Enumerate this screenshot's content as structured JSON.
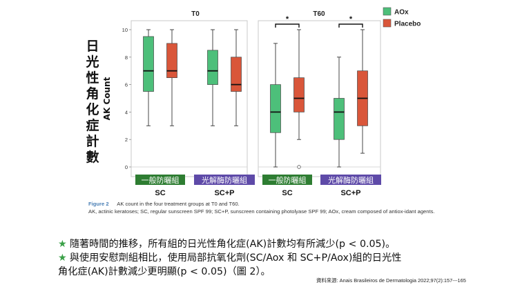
{
  "chart_data": [
    {
      "type": "box",
      "title": "T0",
      "ylabel": "AK Count",
      "ylim": [
        0,
        10
      ],
      "yticks": [
        0,
        2,
        4,
        6,
        8,
        10
      ],
      "groups": [
        {
          "label": "SC",
          "tag": "一般防曬組",
          "tag_color": "#2e7d32"
        },
        {
          "label": "SC+P",
          "tag": "光解酶防曬組",
          "tag_color": "#5e4aa8"
        }
      ],
      "series": [
        {
          "name": "AOx",
          "color": "#4dbf7a",
          "boxes": [
            {
              "min": 3,
              "q1": 5.5,
              "median": 7,
              "q3": 9.5,
              "max": 10,
              "outliers": []
            },
            {
              "min": 3,
              "q1": 6,
              "median": 7,
              "q3": 8.5,
              "max": 10,
              "outliers": []
            }
          ]
        },
        {
          "name": "Placebo",
          "color": "#d9563a",
          "boxes": [
            {
              "min": 3,
              "q1": 6.5,
              "median": 7,
              "q3": 9,
              "max": 10,
              "outliers": []
            },
            {
              "min": 3,
              "q1": 5.5,
              "median": 6,
              "q3": 8,
              "max": 10,
              "outliers": []
            }
          ]
        }
      ]
    },
    {
      "type": "box",
      "title": "T60",
      "ylim": [
        0,
        10
      ],
      "significance": [
        "*",
        "*"
      ],
      "groups": [
        {
          "label": "SC",
          "tag": "一般防曬組",
          "tag_color": "#2e7d32"
        },
        {
          "label": "SC+P",
          "tag": "光解酶防曬組",
          "tag_color": "#5e4aa8"
        }
      ],
      "series": [
        {
          "name": "AOx",
          "color": "#4dbf7a",
          "boxes": [
            {
              "min": 0,
              "q1": 2.5,
              "median": 4,
              "q3": 6,
              "max": 9,
              "outliers": []
            },
            {
              "min": 0,
              "q1": 2,
              "median": 4,
              "q3": 5,
              "max": 8,
              "outliers": []
            }
          ]
        },
        {
          "name": "Placebo",
          "color": "#d9563a",
          "boxes": [
            {
              "min": 2,
              "q1": 4,
              "median": 5,
              "q3": 6.5,
              "max": 10,
              "outliers": [
                0
              ]
            },
            {
              "min": 1,
              "q1": 3,
              "median": 5,
              "q3": 7,
              "max": 10,
              "outliers": []
            }
          ]
        }
      ]
    }
  ],
  "vertical_label": "日光性角化症計數",
  "caption": {
    "figure_label": "Figure 2",
    "title": "AK count in the four treatment groups at T0 and T60.",
    "text": "AK, actinic keratoses; SC, regular sunscreen SPF 99; SC+P, sunscreen containing photolyase SPF 99; AOx, cream composed of antiox-idant agents."
  },
  "bullets": [
    {
      "star": "★",
      "lines": [
        "隨著時間的推移，所有組的日光性角化症(AK)計數均有所減少(p < 0.05)。"
      ]
    },
    {
      "star": "★",
      "lines": [
        "與使用安慰劑組相比，使用局部抗氧化劑(SC/Aox 和 SC+P/Aox)組的日光性",
        "角化症(AK)計數減少更明顯(p < 0.05)（圖 2）。"
      ]
    }
  ],
  "source": "資料來源: Anais Brasileiros de Dermatologia 2022;97(2):157---165",
  "colors": {
    "aox": "#4dbf7a",
    "placebo": "#d9563a",
    "star": "#3aa047",
    "figure_label": "#4a7fb5"
  }
}
